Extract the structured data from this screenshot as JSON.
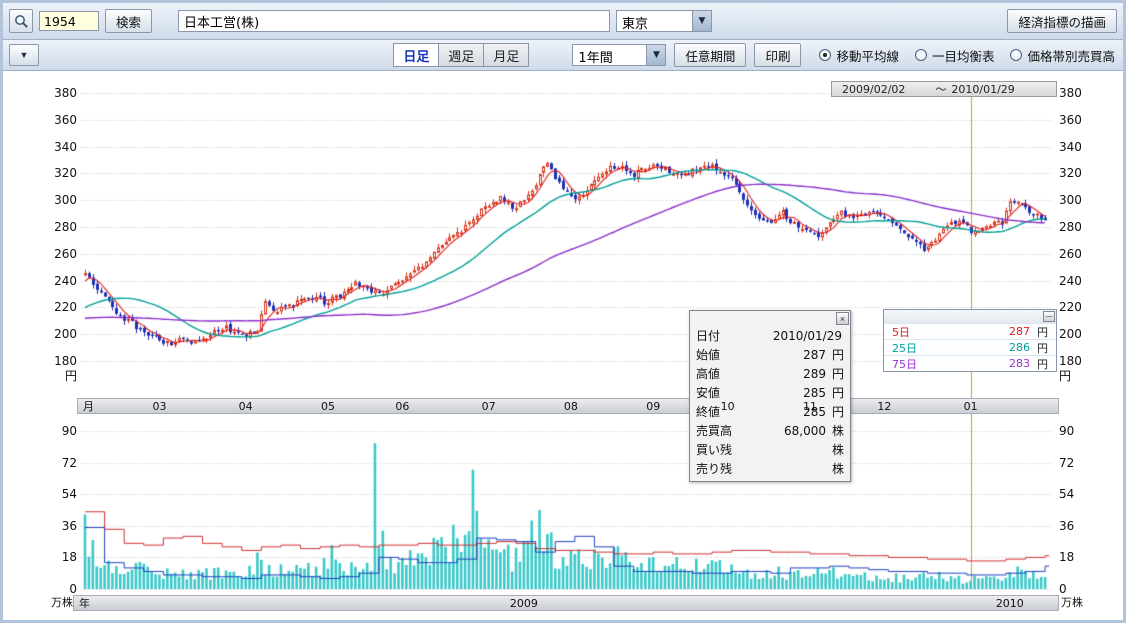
{
  "toolbar": {
    "code_value": "1954",
    "search_label": "検索",
    "company_value": "日本工営(株)",
    "market_value": "東京",
    "dropdown_arrow": "▼",
    "draw_indicator_label": "経済指標の描画"
  },
  "controls": {
    "dropdown_arrow": "▼",
    "tabs": [
      {
        "label": "日足",
        "selected": true
      },
      {
        "label": "週足",
        "selected": false
      },
      {
        "label": "月足",
        "selected": false
      }
    ],
    "period_value": "1年間",
    "custom_period_label": "任意期間",
    "print_label": "印刷",
    "radios": [
      {
        "label": "移動平均線",
        "selected": true
      },
      {
        "label": "一目均衡表",
        "selected": false
      },
      {
        "label": "価格帯別売買高",
        "selected": false
      }
    ]
  },
  "date_range": {
    "start": "2009/02/02",
    "separator": "～",
    "end": "2010/01/29"
  },
  "tooltip": {
    "close_icon": "×",
    "rows": [
      {
        "label": "日付",
        "value": "2010/01/29",
        "unit": ""
      },
      {
        "label": "始値",
        "value": "287",
        "unit": "円"
      },
      {
        "label": "高値",
        "value": "289",
        "unit": "円"
      },
      {
        "label": "安値",
        "value": "285",
        "unit": "円"
      },
      {
        "label": "終値",
        "value": "285",
        "unit": "円"
      },
      {
        "label": "売買高",
        "value": "68,000",
        "unit": "株"
      },
      {
        "label": "買い残",
        "value": "",
        "unit": "株"
      },
      {
        "label": "売り残",
        "value": "",
        "unit": "株"
      }
    ]
  },
  "legend": {
    "minimize_icon": "—",
    "rows": [
      {
        "label": "5日",
        "value": "287",
        "unit": "円",
        "color": "#dd2222"
      },
      {
        "label": "25日",
        "value": "286",
        "unit": "円",
        "color": "#009e96"
      },
      {
        "label": "75日",
        "value": "283",
        "unit": "円",
        "color": "#9933cc"
      }
    ]
  },
  "chart_data": {
    "type": "candlestick+volume",
    "title": "日本工営(株) 日足 1年間",
    "start_date": "2009/02/02",
    "end_date": "2010/01/29",
    "days": 246,
    "price_axis": {
      "ticks": [
        380,
        360,
        340,
        320,
        300,
        280,
        260,
        240,
        220,
        200,
        180
      ],
      "unit": "円",
      "range": [
        180,
        380
      ]
    },
    "volume_axis": {
      "ticks": [
        90,
        72,
        54,
        36,
        18,
        0
      ],
      "unit": "万株",
      "range": [
        0,
        90
      ]
    },
    "month_axis": {
      "label": "月",
      "months": [
        {
          "label": "03",
          "day": 19
        },
        {
          "label": "04",
          "day": 41
        },
        {
          "label": "05",
          "day": 62
        },
        {
          "label": "06",
          "day": 81
        },
        {
          "label": "07",
          "day": 103
        },
        {
          "label": "08",
          "day": 124
        },
        {
          "label": "09",
          "day": 145
        },
        {
          "label": "10",
          "day": 164
        },
        {
          "label": "11",
          "day": 185
        },
        {
          "label": "12",
          "day": 204
        },
        {
          "label": "01",
          "day": 226
        }
      ]
    },
    "year_axis": {
      "label": "年",
      "years": [
        {
          "label": "2009",
          "day": 112
        },
        {
          "label": "2010",
          "day": 236
        }
      ],
      "separator_day": 226
    },
    "close_path": [
      [
        -75,
        228
      ],
      [
        -60,
        210
      ],
      [
        -45,
        202
      ],
      [
        -30,
        200
      ],
      [
        -15,
        212
      ],
      [
        -5,
        230
      ],
      [
        -1,
        243
      ],
      [
        0,
        247
      ],
      [
        2,
        238
      ],
      [
        5,
        228
      ],
      [
        8,
        216
      ],
      [
        12,
        208
      ],
      [
        16,
        200
      ],
      [
        19,
        196
      ],
      [
        22,
        193
      ],
      [
        25,
        197
      ],
      [
        28,
        193
      ],
      [
        32,
        200
      ],
      [
        36,
        205
      ],
      [
        40,
        199
      ],
      [
        44,
        203
      ],
      [
        46,
        224
      ],
      [
        49,
        217
      ],
      [
        53,
        222
      ],
      [
        57,
        229
      ],
      [
        61,
        224
      ],
      [
        65,
        228
      ],
      [
        69,
        238
      ],
      [
        72,
        234
      ],
      [
        76,
        231
      ],
      [
        80,
        239
      ],
      [
        84,
        246
      ],
      [
        88,
        258
      ],
      [
        92,
        268
      ],
      [
        96,
        278
      ],
      [
        100,
        290
      ],
      [
        103,
        298
      ],
      [
        106,
        302
      ],
      [
        109,
        294
      ],
      [
        112,
        300
      ],
      [
        115,
        312
      ],
      [
        118,
        330
      ],
      [
        120,
        317
      ],
      [
        123,
        305
      ],
      [
        126,
        301
      ],
      [
        129,
        312
      ],
      [
        132,
        322
      ],
      [
        136,
        326
      ],
      [
        140,
        319
      ],
      [
        144,
        325
      ],
      [
        148,
        324
      ],
      [
        152,
        318
      ],
      [
        156,
        323
      ],
      [
        160,
        326
      ],
      [
        163,
        320
      ],
      [
        166,
        312
      ],
      [
        169,
        296
      ],
      [
        172,
        287
      ],
      [
        175,
        284
      ],
      [
        178,
        291
      ],
      [
        181,
        282
      ],
      [
        184,
        276
      ],
      [
        187,
        272
      ],
      [
        190,
        283
      ],
      [
        193,
        290
      ],
      [
        196,
        286
      ],
      [
        199,
        289
      ],
      [
        202,
        291
      ],
      [
        205,
        286
      ],
      [
        208,
        280
      ],
      [
        211,
        271
      ],
      [
        214,
        263
      ],
      [
        217,
        272
      ],
      [
        220,
        281
      ],
      [
        223,
        286
      ],
      [
        226,
        277
      ],
      [
        229,
        280
      ],
      [
        232,
        282
      ],
      [
        234,
        284
      ],
      [
        236,
        297
      ],
      [
        238,
        300
      ],
      [
        240,
        294
      ],
      [
        242,
        290
      ],
      [
        244,
        287
      ],
      [
        245,
        285
      ]
    ],
    "volume_path": [
      [
        0,
        38
      ],
      [
        1,
        28
      ],
      [
        3,
        20
      ],
      [
        6,
        14
      ],
      [
        10,
        12
      ],
      [
        16,
        10
      ],
      [
        22,
        9
      ],
      [
        28,
        8
      ],
      [
        34,
        9
      ],
      [
        40,
        9
      ],
      [
        44,
        16
      ],
      [
        48,
        10
      ],
      [
        54,
        10
      ],
      [
        60,
        11
      ],
      [
        63,
        20
      ],
      [
        66,
        12
      ],
      [
        70,
        13
      ],
      [
        73,
        18
      ],
      [
        74,
        83
      ],
      [
        75,
        32
      ],
      [
        77,
        18
      ],
      [
        80,
        15
      ],
      [
        84,
        18
      ],
      [
        88,
        20
      ],
      [
        92,
        24
      ],
      [
        96,
        28
      ],
      [
        98,
        30
      ],
      [
        99,
        68
      ],
      [
        100,
        36
      ],
      [
        102,
        22
      ],
      [
        106,
        18
      ],
      [
        110,
        17
      ],
      [
        113,
        20
      ],
      [
        116,
        45
      ],
      [
        117,
        28
      ],
      [
        120,
        20
      ],
      [
        124,
        16
      ],
      [
        128,
        19
      ],
      [
        132,
        16
      ],
      [
        136,
        17
      ],
      [
        140,
        14
      ],
      [
        144,
        14
      ],
      [
        148,
        15
      ],
      [
        152,
        12
      ],
      [
        156,
        13
      ],
      [
        160,
        13
      ],
      [
        164,
        11
      ],
      [
        168,
        9
      ],
      [
        172,
        9
      ],
      [
        176,
        10
      ],
      [
        180,
        8
      ],
      [
        185,
        8
      ],
      [
        190,
        9
      ],
      [
        195,
        8
      ],
      [
        200,
        8
      ],
      [
        205,
        7
      ],
      [
        210,
        6
      ],
      [
        215,
        8
      ],
      [
        220,
        6
      ],
      [
        225,
        5
      ],
      [
        230,
        6
      ],
      [
        234,
        8
      ],
      [
        238,
        11
      ],
      [
        241,
        9
      ],
      [
        244,
        7
      ],
      [
        245,
        6.8
      ]
    ],
    "last_candle": {
      "open": 287,
      "high": 289,
      "low": 285,
      "close": 285,
      "volume_man": 6.8
    },
    "moving_averages": [
      {
        "period": 5,
        "color": "#e02020",
        "width": 1.1,
        "last_value": 287
      },
      {
        "period": 25,
        "color": "#00a096",
        "width": 1.4,
        "last_value": 286
      },
      {
        "period": 75,
        "color": "#8b2fc9",
        "width": 1.4,
        "last_value": 283
      }
    ],
    "volume_lines": [
      {
        "name": "volume-line-red",
        "color": "#d03030",
        "weekly": [
          44,
          34,
          26,
          25,
          29,
          30,
          26,
          24,
          22,
          24,
          25,
          23,
          24,
          25,
          24,
          25,
          25,
          26,
          25,
          25,
          26,
          27,
          26,
          23,
          22,
          22,
          21,
          20,
          20,
          21,
          20,
          20,
          21,
          22,
          22,
          21,
          21,
          20,
          20,
          19,
          19,
          18,
          18,
          17,
          17,
          16,
          16,
          17,
          18,
          19
        ]
      },
      {
        "name": "volume-line-blue",
        "color": "#2040c0",
        "weekly": [
          35,
          15,
          12,
          10,
          8,
          8,
          7,
          7,
          6,
          8,
          8,
          7,
          6,
          7,
          9,
          18,
          17,
          15,
          15,
          17,
          29,
          28,
          27,
          21,
          27,
          30,
          24,
          13,
          10,
          10,
          10,
          9,
          9,
          10,
          10,
          9,
          12,
          12,
          13,
          12,
          11,
          10,
          10,
          9,
          9,
          8,
          8,
          9,
          10,
          13
        ]
      }
    ],
    "colors": {
      "up": "#d83418",
      "down": "#2030b8",
      "volume_bar": "#3cc8c8",
      "grid": "#c4c4c4",
      "cursor": "#b8a44a"
    },
    "grid": true,
    "legend_position": "right"
  }
}
